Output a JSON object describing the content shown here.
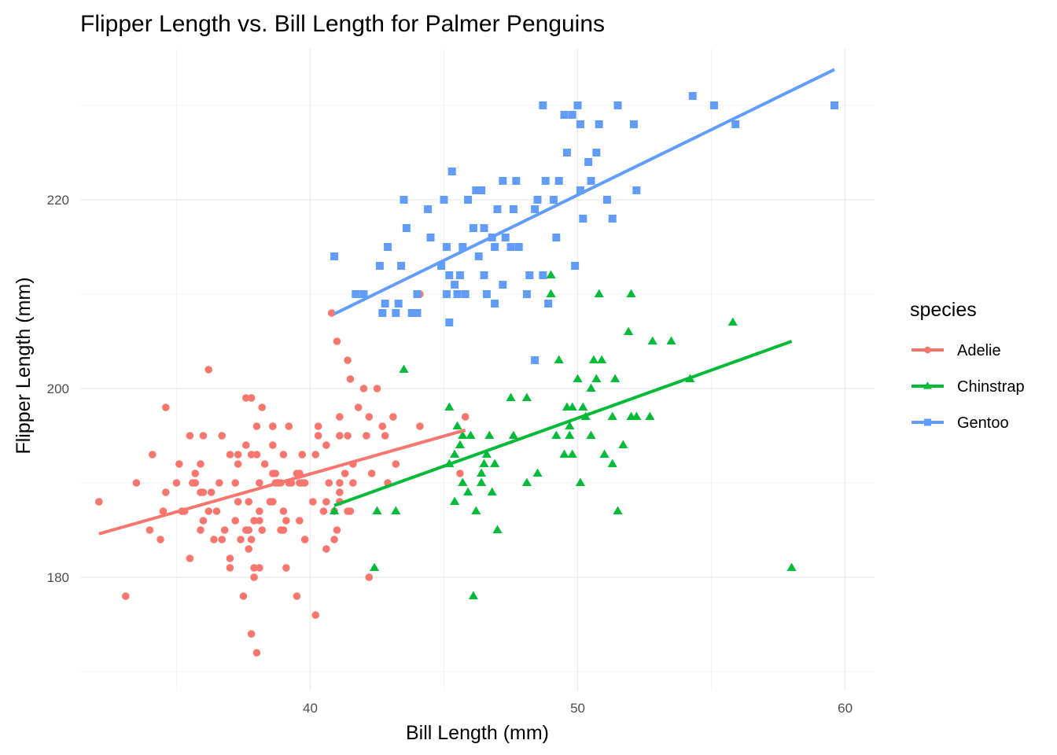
{
  "chart_data": {
    "type": "scatter",
    "title": "Flipper Length vs. Bill Length for Palmer Penguins",
    "xlabel": "Bill Length (mm)",
    "ylabel": "Flipper Length (mm)",
    "xlim": [
      31.4,
      61.1
    ],
    "ylim": [
      168,
      236
    ],
    "xticks": [
      40,
      50,
      60
    ],
    "yticks": [
      180,
      200,
      220
    ],
    "grid": true,
    "legend": {
      "title": "species",
      "position": "right"
    },
    "series": [
      {
        "name": "Adelie",
        "color": "#F8766D",
        "marker": "circle",
        "fit": [
          [
            32.1,
            184.6
          ],
          [
            45.8,
            195.6
          ]
        ],
        "points": [
          [
            32.1,
            188
          ],
          [
            33.1,
            178
          ],
          [
            33.5,
            190
          ],
          [
            34.0,
            185
          ],
          [
            34.1,
            193
          ],
          [
            34.4,
            184
          ],
          [
            34.5,
            187
          ],
          [
            34.6,
            189
          ],
          [
            34.6,
            198
          ],
          [
            35.0,
            190
          ],
          [
            35.1,
            192
          ],
          [
            35.2,
            187
          ],
          [
            35.3,
            187
          ],
          [
            35.5,
            195
          ],
          [
            35.6,
            190
          ],
          [
            35.7,
            190
          ],
          [
            35.7,
            191
          ],
          [
            35.9,
            189
          ],
          [
            35.9,
            185
          ],
          [
            35.9,
            192
          ],
          [
            36.0,
            186
          ],
          [
            36.0,
            189
          ],
          [
            36.0,
            195
          ],
          [
            36.2,
            187
          ],
          [
            36.2,
            202
          ],
          [
            36.3,
            189
          ],
          [
            36.4,
            184
          ],
          [
            36.5,
            187
          ],
          [
            36.6,
            190
          ],
          [
            36.7,
            184
          ],
          [
            36.7,
            195
          ],
          [
            36.8,
            185
          ],
          [
            37.0,
            193
          ],
          [
            37.0,
            182
          ],
          [
            37.0,
            181
          ],
          [
            37.2,
            186
          ],
          [
            37.2,
            190
          ],
          [
            37.3,
            193
          ],
          [
            37.3,
            192
          ],
          [
            37.3,
            188
          ],
          [
            37.4,
            184
          ],
          [
            37.5,
            178
          ],
          [
            37.6,
            199
          ],
          [
            37.6,
            185
          ],
          [
            37.6,
            194
          ],
          [
            37.7,
            188
          ],
          [
            37.7,
            183
          ],
          [
            37.7,
            185
          ],
          [
            37.8,
            193
          ],
          [
            37.8,
            199
          ],
          [
            37.8,
            184
          ],
          [
            37.8,
            174
          ],
          [
            37.9,
            180
          ],
          [
            37.9,
            186
          ],
          [
            38.0,
            196
          ],
          [
            38.0,
            193
          ],
          [
            38.1,
            186
          ],
          [
            38.1,
            181
          ],
          [
            38.1,
            190
          ],
          [
            38.1,
            187
          ],
          [
            38.2,
            198
          ],
          [
            38.2,
            185
          ],
          [
            38.3,
            192
          ],
          [
            38.5,
            188
          ],
          [
            38.6,
            196
          ],
          [
            38.6,
            191
          ],
          [
            38.6,
            188
          ],
          [
            38.6,
            196
          ],
          [
            38.6,
            194
          ],
          [
            38.7,
            190
          ],
          [
            38.7,
            191
          ],
          [
            38.8,
            190
          ],
          [
            38.8,
            190
          ],
          [
            38.9,
            185
          ],
          [
            38.9,
            190
          ],
          [
            39.0,
            185
          ],
          [
            39.0,
            193
          ],
          [
            39.1,
            186
          ],
          [
            39.1,
            181
          ],
          [
            39.2,
            190
          ],
          [
            39.2,
            196
          ],
          [
            39.3,
            190
          ],
          [
            39.5,
            191
          ],
          [
            39.5,
            178
          ],
          [
            39.6,
            186
          ],
          [
            39.6,
            191
          ],
          [
            39.7,
            193
          ],
          [
            39.7,
            190
          ],
          [
            39.8,
            184
          ],
          [
            39.8,
            184
          ],
          [
            40.1,
            188
          ],
          [
            40.2,
            193
          ],
          [
            40.2,
            176
          ],
          [
            40.3,
            195
          ],
          [
            40.3,
            196
          ],
          [
            40.5,
            187
          ],
          [
            40.6,
            188
          ],
          [
            40.6,
            194
          ],
          [
            40.7,
            190
          ],
          [
            40.8,
            208
          ],
          [
            40.9,
            184
          ],
          [
            41.0,
            185
          ],
          [
            41.1,
            188
          ],
          [
            41.1,
            195
          ],
          [
            41.1,
            189
          ],
          [
            41.3,
            191
          ],
          [
            41.4,
            195
          ],
          [
            41.5,
            201
          ],
          [
            41.6,
            190
          ],
          [
            41.8,
            198
          ],
          [
            42.0,
            200
          ],
          [
            42.1,
            195
          ],
          [
            42.2,
            197
          ],
          [
            42.3,
            191
          ],
          [
            42.5,
            200
          ],
          [
            42.7,
            196
          ],
          [
            42.8,
            195
          ],
          [
            42.9,
            190
          ],
          [
            43.1,
            197
          ],
          [
            43.2,
            192
          ],
          [
            44.1,
            210
          ],
          [
            44.1,
            196
          ],
          [
            45.6,
            191
          ],
          [
            45.8,
            197
          ],
          [
            39.8,
            190
          ],
          [
            38.0,
            172
          ],
          [
            37.9,
            181
          ],
          [
            40.9,
            187
          ],
          [
            41.5,
            187
          ],
          [
            41.6,
            192
          ],
          [
            41.1,
            190
          ],
          [
            39.6,
            190
          ],
          [
            40.6,
            183
          ],
          [
            39.0,
            187
          ],
          [
            42.2,
            180
          ],
          [
            41.4,
            203
          ],
          [
            41.0,
            205
          ],
          [
            41.4,
            187
          ],
          [
            41.1,
            197
          ],
          [
            35.5,
            182
          ]
        ]
      },
      {
        "name": "Chinstrap",
        "color": "#00BA38",
        "marker": "triangle",
        "fit": [
          [
            40.9,
            187.6
          ],
          [
            58.0,
            205.0
          ]
        ],
        "points": [
          [
            40.9,
            187
          ],
          [
            42.4,
            181
          ],
          [
            42.5,
            187
          ],
          [
            43.2,
            187
          ],
          [
            43.5,
            202
          ],
          [
            45.2,
            198
          ],
          [
            45.2,
            192
          ],
          [
            45.4,
            188
          ],
          [
            45.5,
            196
          ],
          [
            45.6,
            194
          ],
          [
            45.7,
            195
          ],
          [
            45.7,
            190
          ],
          [
            45.9,
            189
          ],
          [
            46.0,
            195
          ],
          [
            46.1,
            178
          ],
          [
            46.2,
            187
          ],
          [
            46.4,
            190
          ],
          [
            46.4,
            191
          ],
          [
            46.5,
            192
          ],
          [
            46.6,
            193
          ],
          [
            46.7,
            195
          ],
          [
            46.8,
            189
          ],
          [
            46.9,
            192
          ],
          [
            47.0,
            185
          ],
          [
            47.5,
            199
          ],
          [
            47.6,
            195
          ],
          [
            48.1,
            199
          ],
          [
            48.5,
            191
          ],
          [
            49.0,
            212
          ],
          [
            49.0,
            210
          ],
          [
            49.2,
            195
          ],
          [
            49.3,
            203
          ],
          [
            49.5,
            193
          ],
          [
            49.6,
            198
          ],
          [
            49.7,
            195
          ],
          [
            49.8,
            198
          ],
          [
            49.8,
            193
          ],
          [
            50.0,
            201
          ],
          [
            50.1,
            190
          ],
          [
            50.2,
            198
          ],
          [
            50.3,
            197
          ],
          [
            50.5,
            200
          ],
          [
            50.6,
            203
          ],
          [
            50.7,
            201
          ],
          [
            50.8,
            210
          ],
          [
            50.9,
            203
          ],
          [
            51.0,
            193
          ],
          [
            51.3,
            197
          ],
          [
            51.4,
            201
          ],
          [
            51.5,
            187
          ],
          [
            51.7,
            194
          ],
          [
            51.9,
            206
          ],
          [
            52.0,
            210
          ],
          [
            52.0,
            197
          ],
          [
            52.2,
            197
          ],
          [
            52.7,
            197
          ],
          [
            52.8,
            205
          ],
          [
            53.5,
            205
          ],
          [
            54.2,
            201
          ],
          [
            55.8,
            207
          ],
          [
            58.0,
            181
          ],
          [
            50.5,
            195
          ],
          [
            49.7,
            196
          ],
          [
            51.3,
            192
          ],
          [
            45.4,
            193
          ],
          [
            48.1,
            190
          ]
        ]
      },
      {
        "name": "Gentoo",
        "color": "#619CFF",
        "marker": "square",
        "fit": [
          [
            40.9,
            207.9
          ],
          [
            59.6,
            233.8
          ]
        ],
        "points": [
          [
            40.9,
            214
          ],
          [
            41.7,
            210
          ],
          [
            42.0,
            210
          ],
          [
            42.6,
            213
          ],
          [
            42.7,
            208
          ],
          [
            42.8,
            209
          ],
          [
            42.9,
            215
          ],
          [
            43.2,
            208
          ],
          [
            43.3,
            209
          ],
          [
            43.4,
            213
          ],
          [
            43.5,
            220
          ],
          [
            43.6,
            217
          ],
          [
            43.8,
            208
          ],
          [
            44.0,
            208
          ],
          [
            44.4,
            219
          ],
          [
            44.5,
            216
          ],
          [
            44.9,
            213
          ],
          [
            45.0,
            220
          ],
          [
            45.1,
            215
          ],
          [
            45.1,
            210
          ],
          [
            45.2,
            207
          ],
          [
            45.2,
            212
          ],
          [
            45.3,
            223
          ],
          [
            45.4,
            211
          ],
          [
            45.5,
            210
          ],
          [
            45.6,
            212
          ],
          [
            45.7,
            215
          ],
          [
            45.8,
            210
          ],
          [
            45.9,
            220
          ],
          [
            46.1,
            217
          ],
          [
            46.2,
            221
          ],
          [
            46.3,
            214
          ],
          [
            46.4,
            221
          ],
          [
            46.5,
            217
          ],
          [
            46.5,
            212
          ],
          [
            46.6,
            210
          ],
          [
            46.8,
            216
          ],
          [
            46.9,
            215
          ],
          [
            47.0,
            219
          ],
          [
            47.2,
            222
          ],
          [
            47.3,
            216
          ],
          [
            47.5,
            215
          ],
          [
            47.6,
            219
          ],
          [
            47.7,
            222
          ],
          [
            47.8,
            215
          ],
          [
            48.1,
            210
          ],
          [
            48.2,
            212
          ],
          [
            48.4,
            219
          ],
          [
            48.5,
            220
          ],
          [
            48.7,
            230
          ],
          [
            48.8,
            222
          ],
          [
            48.9,
            209
          ],
          [
            49.1,
            220
          ],
          [
            49.2,
            216
          ],
          [
            49.3,
            222
          ],
          [
            49.5,
            229
          ],
          [
            49.6,
            225
          ],
          [
            49.8,
            229
          ],
          [
            49.9,
            213
          ],
          [
            50.0,
            230
          ],
          [
            50.1,
            228
          ],
          [
            50.2,
            218
          ],
          [
            50.4,
            224
          ],
          [
            50.5,
            222
          ],
          [
            50.7,
            225
          ],
          [
            50.8,
            228
          ],
          [
            51.1,
            220
          ],
          [
            51.3,
            218
          ],
          [
            51.5,
            230
          ],
          [
            52.1,
            228
          ],
          [
            52.2,
            221
          ],
          [
            54.3,
            231
          ],
          [
            55.1,
            230
          ],
          [
            55.9,
            228
          ],
          [
            59.6,
            230
          ],
          [
            48.4,
            203
          ],
          [
            44.0,
            210
          ],
          [
            46.9,
            209
          ],
          [
            47.2,
            211
          ],
          [
            48.7,
            212
          ],
          [
            50.1,
            221
          ]
        ]
      }
    ]
  }
}
